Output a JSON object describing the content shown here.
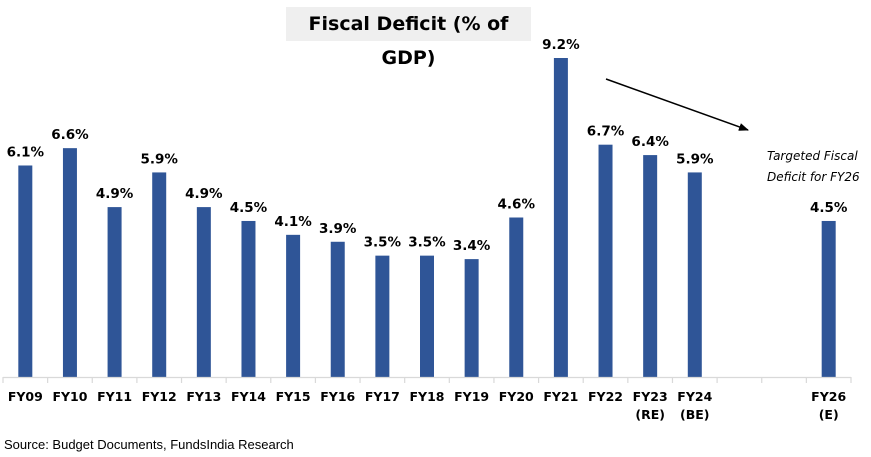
{
  "chart_data": {
    "type": "bar",
    "title": "Fiscal Deficit (% of GDP)",
    "xlabel": "",
    "ylabel": "",
    "categories": [
      [
        "FY09"
      ],
      [
        "FY10"
      ],
      [
        "FY11"
      ],
      [
        "FY12"
      ],
      [
        "FY13"
      ],
      [
        "FY14"
      ],
      [
        "FY15"
      ],
      [
        "FY16"
      ],
      [
        "FY17"
      ],
      [
        "FY18"
      ],
      [
        "FY19"
      ],
      [
        "FY20"
      ],
      [
        "FY21"
      ],
      [
        "FY22"
      ],
      [
        "FY23",
        "(RE)"
      ],
      [
        "FY24",
        "(BE)"
      ],
      [
        ""
      ],
      [
        ""
      ],
      [
        "FY26",
        "(E)"
      ]
    ],
    "values": [
      6.1,
      6.6,
      4.9,
      5.9,
      4.9,
      4.5,
      4.1,
      3.9,
      3.5,
      3.5,
      3.4,
      4.6,
      9.2,
      6.7,
      6.4,
      5.9,
      null,
      null,
      4.5
    ],
    "value_labels": [
      "6.1%",
      "6.6%",
      "4.9%",
      "5.9%",
      "4.9%",
      "4.5%",
      "4.1%",
      "3.9%",
      "3.5%",
      "3.5%",
      "3.4%",
      "4.6%",
      "9.2%",
      "6.7%",
      "6.4%",
      "5.9%",
      "",
      "",
      "4.5%"
    ],
    "ylim": [
      0,
      9.2
    ],
    "grid": false,
    "legend": "none",
    "bar_color": "#2f5597",
    "axis_color": "#d9d9d9",
    "annotations": [
      {
        "text_lines": [
          "Targeted Fiscal",
          "Deficit  for FY26"
        ],
        "style": "italic",
        "arrow": "descending arrow from FY21 area toward FY26 note"
      }
    ]
  },
  "source": "Source: Budget Documents, FundsIndia Research"
}
